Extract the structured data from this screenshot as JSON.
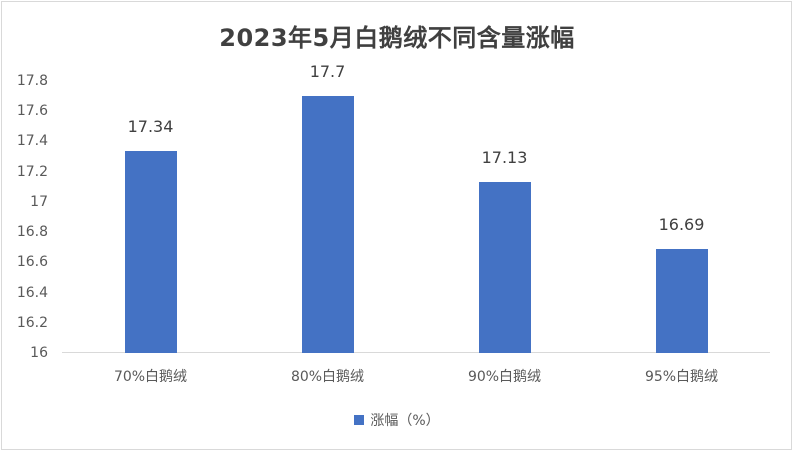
{
  "chart_data": {
    "type": "bar",
    "title": "2023年5月白鹅绒不同含量涨幅",
    "categories": [
      "70%白鹅绒",
      "80%白鹅绒",
      "90%白鹅绒",
      "95%白鹅绒"
    ],
    "series": [
      {
        "name": "涨幅（%）",
        "values": [
          17.34,
          17.7,
          17.13,
          16.69
        ],
        "color": "#4472c4"
      }
    ],
    "data_labels": [
      "17.34",
      "17.7",
      "17.13",
      "16.69"
    ],
    "xlabel": "",
    "ylabel": "",
    "ylim": [
      16,
      17.8
    ],
    "yticks": [
      "17.8",
      "17.6",
      "17.4",
      "17.2",
      "17",
      "16.8",
      "16.6",
      "16.4",
      "16.2",
      "16"
    ],
    "grid": false,
    "legend_position": "bottom"
  },
  "title": "2023年5月白鹅绒不同含量涨幅",
  "legend": {
    "label": "涨幅（%）",
    "color": "#4472c4"
  }
}
